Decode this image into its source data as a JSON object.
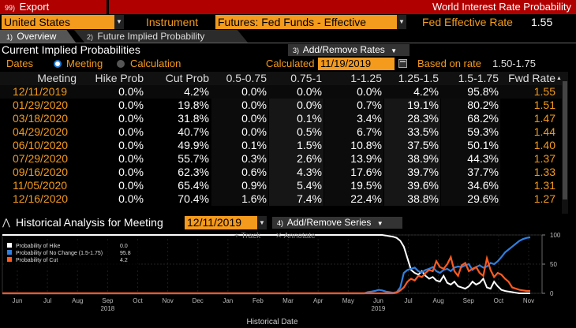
{
  "header": {
    "export_num": "99)",
    "export_label": "Export",
    "window_title": "World Interest Rate Probability"
  },
  "selectors": {
    "country": "United States",
    "instrument_label": "Instrument",
    "instrument": "Futures: Fed Funds - Effective",
    "rate_label": "Fed Effective Rate",
    "rate_value": "1.55"
  },
  "tabs": [
    {
      "num": "1)",
      "label": "Overview"
    },
    {
      "num": "2)",
      "label": "Future Implied Probability"
    }
  ],
  "section": {
    "title": "Current Implied Probabilities",
    "add_remove_num": "3)",
    "add_remove_label": "Add/Remove Rates"
  },
  "dates_row": {
    "dates_label": "Dates",
    "option_meeting": "Meeting",
    "option_calculation": "Calculation",
    "calculated_label": "Calculated",
    "calculated_date": "11/19/2019",
    "based_label": "Based on rate",
    "based_value": "1.50-1.75"
  },
  "table": {
    "columns": [
      "Meeting",
      "Hike Prob",
      "Cut Prob",
      "0.5-0.75",
      "0.75-1",
      "1-1.25",
      "1.25-1.5",
      "1.5-1.75",
      "Fwd Rate"
    ],
    "rows": [
      [
        "12/11/2019",
        "0.0%",
        "4.2%",
        "0.0%",
        "0.0%",
        "0.0%",
        "4.2%",
        "95.8%",
        "1.55"
      ],
      [
        "01/29/2020",
        "0.0%",
        "19.8%",
        "0.0%",
        "0.0%",
        "0.7%",
        "19.1%",
        "80.2%",
        "1.51"
      ],
      [
        "03/18/2020",
        "0.0%",
        "31.8%",
        "0.0%",
        "0.1%",
        "3.4%",
        "28.3%",
        "68.2%",
        "1.47"
      ],
      [
        "04/29/2020",
        "0.0%",
        "40.7%",
        "0.0%",
        "0.5%",
        "6.7%",
        "33.5%",
        "59.3%",
        "1.44"
      ],
      [
        "06/10/2020",
        "0.0%",
        "49.9%",
        "0.1%",
        "1.5%",
        "10.8%",
        "37.5%",
        "50.1%",
        "1.40"
      ],
      [
        "07/29/2020",
        "0.0%",
        "55.7%",
        "0.3%",
        "2.6%",
        "13.9%",
        "38.9%",
        "44.3%",
        "1.37"
      ],
      [
        "09/16/2020",
        "0.0%",
        "62.3%",
        "0.6%",
        "4.3%",
        "17.6%",
        "39.7%",
        "37.7%",
        "1.33"
      ],
      [
        "11/05/2020",
        "0.0%",
        "65.4%",
        "0.9%",
        "5.4%",
        "19.5%",
        "39.6%",
        "34.6%",
        "1.31"
      ],
      [
        "12/16/2020",
        "0.0%",
        "70.4%",
        "1.6%",
        "7.4%",
        "22.4%",
        "38.8%",
        "29.6%",
        "1.27"
      ]
    ]
  },
  "historical": {
    "label": "Historical Analysis for Meeting",
    "meeting_date": "12/11/2019",
    "add_series_num": "4)",
    "add_series_label": "Add/Remove Series",
    "track_label": "Track",
    "annotate_label": "Annotate"
  },
  "chart_data": {
    "type": "line",
    "xlabel": "Historical Date",
    "x_ticks": [
      "Jun",
      "Jul",
      "Aug",
      "Sep",
      "Oct",
      "Nov",
      "Dec",
      "Jan",
      "Feb",
      "Mar",
      "Apr",
      "May",
      "Jun",
      "Jul",
      "Aug",
      "Sep",
      "Oct",
      "Nov"
    ],
    "year_labels": [
      {
        "after_tick": 3,
        "label": "2018"
      },
      {
        "after_tick": 12,
        "label": "2019"
      }
    ],
    "ylim": [
      0,
      100
    ],
    "y_ticks": [
      "100",
      "50",
      "0"
    ],
    "legend": [
      {
        "name": "Probability of Hike",
        "value": "0.0",
        "color": "#ffffff"
      },
      {
        "name": "Probability of No Change (1.5-1.75)",
        "value": "95.8",
        "color": "#2f7fe0"
      },
      {
        "name": "Probability of Cut",
        "value": "4.2",
        "color": "#ff5a1f"
      }
    ],
    "series": [
      {
        "name": "Probability of Hike",
        "color": "#ffffff",
        "values": [
          100,
          100,
          100,
          100,
          100,
          100,
          100,
          100,
          100,
          100,
          100,
          100,
          100,
          100,
          100,
          100,
          100,
          100,
          100,
          100,
          100,
          100,
          100,
          100,
          100,
          100,
          99,
          98,
          97,
          95,
          90,
          80,
          60,
          40,
          35,
          32,
          38,
          30,
          25,
          28,
          22,
          20,
          30,
          18,
          15,
          20,
          12,
          10,
          8,
          12,
          20,
          15,
          18,
          25,
          10,
          8,
          20,
          12,
          6,
          4,
          3,
          2,
          1,
          0,
          0,
          0,
          0
        ]
      },
      {
        "name": "Probability of No Change (1.5-1.75)",
        "color": "#2f7fe0",
        "values": [
          0,
          0,
          0,
          0,
          0,
          0,
          0,
          0,
          0,
          0,
          0,
          0,
          0,
          0,
          0,
          0,
          0,
          0,
          0,
          0,
          0,
          2,
          3,
          4,
          6,
          5,
          3,
          2,
          1,
          2,
          10,
          35,
          40,
          42,
          44,
          38,
          36,
          40,
          42,
          45,
          38,
          35,
          40,
          42,
          38,
          44,
          46,
          45,
          48,
          50,
          40,
          45,
          48,
          44,
          46,
          52,
          50,
          55,
          62,
          70,
          75,
          80,
          85,
          90,
          93,
          95,
          96
        ]
      },
      {
        "name": "Probability of Cut",
        "color": "#ff5a1f",
        "values": [
          0,
          0,
          0,
          0,
          0,
          0,
          0,
          0,
          0,
          0,
          0,
          0,
          0,
          0,
          0,
          0,
          0,
          0,
          0,
          0,
          0,
          0,
          0,
          0,
          0,
          0,
          0,
          0,
          0,
          1,
          5,
          10,
          20,
          25,
          22,
          30,
          28,
          35,
          40,
          38,
          55,
          45,
          42,
          50,
          62,
          38,
          30,
          48,
          52,
          38,
          42,
          45,
          35,
          30,
          60,
          40,
          28,
          35,
          32,
          25,
          20,
          10,
          8,
          6,
          5,
          4,
          4
        ]
      }
    ]
  }
}
